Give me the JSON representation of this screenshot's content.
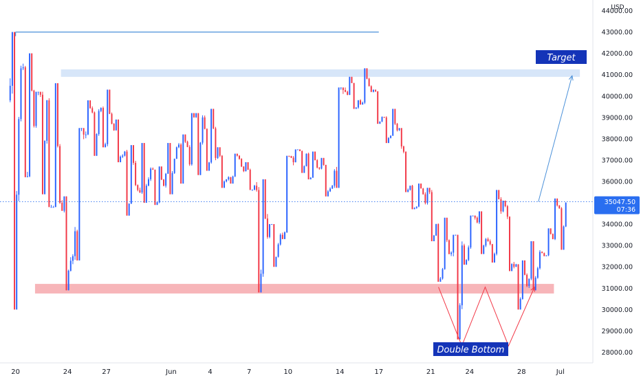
{
  "chart_data": {
    "type": "candlestick",
    "currency": "USD",
    "y_ticks": [
      28000,
      29000,
      30000,
      31000,
      32000,
      33000,
      34000,
      35000,
      36000,
      37000,
      38000,
      39000,
      40000,
      41000,
      42000,
      43000,
      44000
    ],
    "y_tick_labels": [
      "28000.00",
      "29000.00",
      "30000.00",
      "31000.00",
      "32000.00",
      "33000.00",
      "34000.00",
      "35000.00",
      "36000.00",
      "37000.00",
      "38000.00",
      "39000.00",
      "40000.00",
      "41000.00",
      "42000.00",
      "43000.00",
      "44000.00"
    ],
    "ylim": [
      27500,
      44500
    ],
    "x_ticks": [
      {
        "label": "20",
        "t": 0
      },
      {
        "label": "24",
        "t": 4
      },
      {
        "label": "27",
        "t": 7
      },
      {
        "label": "Jun",
        "t": 12
      },
      {
        "label": "4",
        "t": 15
      },
      {
        "label": "7",
        "t": 18
      },
      {
        "label": "10",
        "t": 21
      },
      {
        "label": "14",
        "t": 25
      },
      {
        "label": "17",
        "t": 28
      },
      {
        "label": "21",
        "t": 32
      },
      {
        "label": "24",
        "t": 35
      },
      {
        "label": "28",
        "t": 39
      },
      {
        "label": "Jul",
        "t": 42
      }
    ],
    "xlim": [
      -1.2,
      44.5
    ],
    "current_price": {
      "value": 35047.5,
      "label": "35047.50",
      "timer": "07:36"
    },
    "daily_ohlc": [
      [
        39800,
        43000,
        30000,
        41300
      ],
      [
        41300,
        42000,
        36200,
        38600
      ],
      [
        38600,
        40200,
        35400,
        39800
      ],
      [
        39800,
        40600,
        34800,
        35000
      ],
      [
        35000,
        35300,
        30900,
        32500
      ],
      [
        32500,
        38500,
        32300,
        38200
      ],
      [
        38200,
        39800,
        37200,
        39300
      ],
      [
        39300,
        40300,
        37600,
        38700
      ],
      [
        38700,
        38900,
        36900,
        37400
      ],
      [
        37400,
        37700,
        34400,
        35600
      ],
      [
        35600,
        37800,
        35000,
        36600
      ],
      [
        36600,
        36700,
        34900,
        35800
      ],
      [
        35800,
        37800,
        35400,
        37600
      ],
      [
        37600,
        38200,
        35900,
        36800
      ],
      [
        36800,
        39200,
        36300,
        39000
      ],
      [
        39000,
        39400,
        36500,
        37100
      ],
      [
        37100,
        37600,
        35700,
        36200
      ],
      [
        36200,
        37300,
        35900,
        36700
      ],
      [
        36700,
        36900,
        35600,
        35800
      ],
      [
        35800,
        36100,
        30800,
        33400
      ],
      [
        33400,
        34000,
        32000,
        33500
      ],
      [
        33500,
        37200,
        33300,
        36900
      ],
      [
        36900,
        37500,
        36400,
        37300
      ],
      [
        37300,
        37400,
        36100,
        36600
      ],
      [
        36600,
        37100,
        35300,
        35800
      ],
      [
        35800,
        40400,
        35700,
        40200
      ],
      [
        40200,
        40900,
        39400,
        39800
      ],
      [
        39800,
        41300,
        39600,
        40200
      ],
      [
        40200,
        40300,
        38700,
        39000
      ],
      [
        39000,
        39400,
        37800,
        38400
      ],
      [
        38400,
        38500,
        35500,
        35800
      ],
      [
        35800,
        35900,
        34700,
        35400
      ],
      [
        35400,
        35700,
        33200,
        34000
      ],
      [
        34000,
        34300,
        31300,
        32600
      ],
      [
        32600,
        33500,
        28600,
        33000
      ],
      [
        33000,
        34400,
        32100,
        34300
      ],
      [
        34300,
        34600,
        32600,
        33200
      ],
      [
        33200,
        35600,
        32200,
        34600
      ],
      [
        34600,
        35100,
        31800,
        32000
      ],
      [
        32000,
        32300,
        30000,
        31100
      ],
      [
        31100,
        33200,
        30900,
        32700
      ],
      [
        32700,
        33800,
        32500,
        33300
      ],
      [
        33300,
        35200,
        32800,
        35000
      ]
    ],
    "annotations": {
      "resistance_line": {
        "price": 43000,
        "t_start": 0,
        "t_end": 28
      },
      "resistance_zone": {
        "price_low": 40900,
        "price_high": 41250,
        "t_start": 3.5,
        "t_end": 43.5
      },
      "support_zone": {
        "price_low": 30750,
        "price_high": 31200,
        "t_start": 1.5,
        "t_end": 41.5
      },
      "target_label": {
        "text": "Target"
      },
      "double_bottom_label": {
        "text": "Double Bottom"
      },
      "double_bottom_path": [
        {
          "t": 32.6,
          "p": 31050
        },
        {
          "t": 34.4,
          "p": 28300
        },
        {
          "t": 36.2,
          "p": 31050
        },
        {
          "t": 38.0,
          "p": 28300
        },
        {
          "t": 40.0,
          "p": 31050
        }
      ],
      "projection_arrow": {
        "from": {
          "t": 40.3,
          "p": 35050
        },
        "to": {
          "t": 42.9,
          "p": 40950
        }
      }
    },
    "colors": {
      "up": "#2962ff",
      "down": "#f23645",
      "support_zone": "#f7b5b9",
      "resistance_zone": "#d7e6f9",
      "line": "#4a90d9",
      "label_bg": "#1434b8",
      "price_label_bg": "#2a6ef0",
      "grid_text": "#131722"
    }
  }
}
